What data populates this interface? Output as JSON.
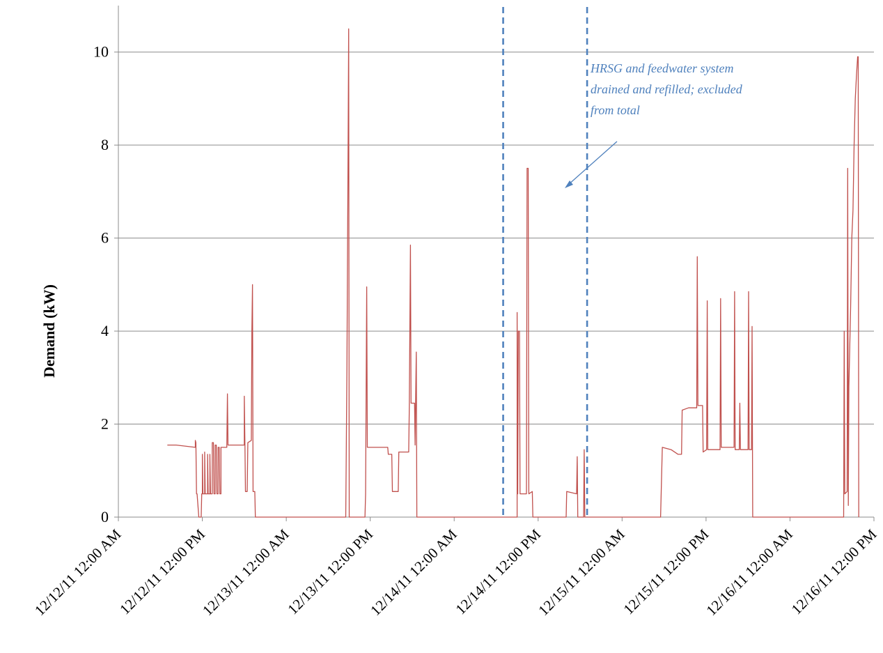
{
  "chart_data": {
    "type": "line",
    "title": "",
    "xlabel": "",
    "ylabel": "Demand (kW)",
    "ylim": [
      0,
      11
    ],
    "yticks": [
      "0",
      "2",
      "4",
      "6",
      "8",
      "10"
    ],
    "ytick_values": [
      0,
      2,
      4,
      6,
      8,
      10
    ],
    "xlim": [
      "12/12/11 12:00 AM",
      "12/16/11 12:00 PM"
    ],
    "xticks": [
      "12/12/11 12:00 AM",
      "12/12/11 12:00 PM",
      "12/13/11 12:00 AM",
      "12/13/11 12:00 PM",
      "12/14/11 12:00 AM",
      "12/14/11 12:00 PM",
      "12/15/11 12:00 AM",
      "12/15/11 12:00 PM",
      "12/16/11 12:00 AM",
      "12/16/11 12:00 PM"
    ],
    "grid": "horizontal",
    "series": [
      {
        "color": "#C0504D",
        "points": [
          [
            "12/12/11 7:00 AM",
            1.55
          ],
          [
            "12/12/11 8:15 AM",
            1.55
          ],
          [
            "12/12/11 11:00 AM",
            1.5
          ],
          [
            "12/12/11 11:00 AM",
            1.65
          ],
          [
            "12/12/11 11:05 AM",
            1.6
          ],
          [
            "12/12/11 11:10 AM",
            0.5
          ],
          [
            "12/12/11 11:15 AM",
            0.5
          ],
          [
            "12/12/11 11:30 AM",
            0.0
          ],
          [
            "12/12/11 11:50 AM",
            0.0
          ],
          [
            "12/12/11 11:55 AM",
            0.5
          ],
          [
            "12/12/11 12:00 PM",
            0.5
          ],
          [
            "12/12/11 12:00 PM",
            1.35
          ],
          [
            "12/12/11 12:05 PM",
            0.5
          ],
          [
            "12/12/11 12:20 PM",
            0.5
          ],
          [
            "12/12/11 12:20 PM",
            1.4
          ],
          [
            "12/12/11 12:25 PM",
            0.5
          ],
          [
            "12/12/11 12:45 PM",
            0.5
          ],
          [
            "12/12/11 12:45 PM",
            1.35
          ],
          [
            "12/12/11 12:50 PM",
            0.5
          ],
          [
            "12/12/11 1:05 PM",
            0.5
          ],
          [
            "12/12/11 1:05 PM",
            1.35
          ],
          [
            "12/12/11 1:10 PM",
            0.5
          ],
          [
            "12/12/11 1:25 PM",
            0.5
          ],
          [
            "12/12/11 1:25 PM",
            1.6
          ],
          [
            "12/12/11 1:35 PM",
            1.6
          ],
          [
            "12/12/11 1:40 PM",
            0.5
          ],
          [
            "12/12/11 1:50 PM",
            0.5
          ],
          [
            "12/12/11 1:50 PM",
            1.55
          ],
          [
            "12/12/11 2:00 PM",
            1.55
          ],
          [
            "12/12/11 2:05 PM",
            0.5
          ],
          [
            "12/12/11 2:15 PM",
            0.5
          ],
          [
            "12/12/11 2:15 PM",
            1.5
          ],
          [
            "12/12/11 2:25 PM",
            1.5
          ],
          [
            "12/12/11 2:30 PM",
            0.5
          ],
          [
            "12/12/11 2:40 PM",
            0.5
          ],
          [
            "12/12/11 2:40 PM",
            1.5
          ],
          [
            "12/12/11 3:30 PM",
            1.5
          ],
          [
            "12/12/11 3:35 PM",
            2.65
          ],
          [
            "12/12/11 3:40 PM",
            1.55
          ],
          [
            "12/12/11 6:00 PM",
            1.55
          ],
          [
            "12/12/11 6:00 PM",
            2.6
          ],
          [
            "12/12/11 6:05 PM",
            1.6
          ],
          [
            "12/12/11 6:10 PM",
            0.55
          ],
          [
            "12/12/11 6:25 PM",
            0.55
          ],
          [
            "12/12/11 6:30 PM",
            1.6
          ],
          [
            "12/12/11 7:00 PM",
            1.65
          ],
          [
            "12/12/11 7:05 PM",
            4.0
          ],
          [
            "12/12/11 7:10 PM",
            5.0
          ],
          [
            "12/12/11 7:15 PM",
            0.55
          ],
          [
            "12/12/11 7:30 PM",
            0.55
          ],
          [
            "12/12/11 7:35 PM",
            0.0
          ],
          [
            "12/13/11 8:30 AM",
            0.0
          ],
          [
            "12/13/11 8:30 AM",
            0.0
          ],
          [
            "12/13/11 8:40 AM",
            3.2
          ],
          [
            "12/13/11 8:50 AM",
            8.0
          ],
          [
            "12/13/11 8:55 AM",
            10.5
          ],
          [
            "12/13/11 9:00 AM",
            0.0
          ],
          [
            "12/13/11 11:15 AM",
            0.0
          ],
          [
            "12/13/11 11:20 AM",
            0.5
          ],
          [
            "12/13/11 11:30 AM",
            4.95
          ],
          [
            "12/13/11 11:35 AM",
            1.5
          ],
          [
            "12/13/11 2:30 PM",
            1.5
          ],
          [
            "12/13/11 2:35 PM",
            1.35
          ],
          [
            "12/13/11 3:05 PM",
            1.35
          ],
          [
            "12/13/11 3:10 PM",
            0.55
          ],
          [
            "12/13/11 4:00 PM",
            0.55
          ],
          [
            "12/13/11 4:05 PM",
            1.4
          ],
          [
            "12/13/11 5:30 PM",
            1.4
          ],
          [
            "12/13/11 5:35 PM",
            2.4
          ],
          [
            "12/13/11 5:45 PM",
            5.85
          ],
          [
            "12/13/11 5:50 PM",
            2.45
          ],
          [
            "12/13/11 6:20 PM",
            2.45
          ],
          [
            "12/13/11 6:25 PM",
            1.55
          ],
          [
            "12/13/11 6:30 PM",
            2.7
          ],
          [
            "12/13/11 6:35 PM",
            3.55
          ],
          [
            "12/13/11 6:40 PM",
            0.0
          ],
          [
            "12/14/11 9:00 AM",
            0.0
          ],
          [
            "12/14/11 9:00 AM",
            4.4
          ],
          [
            "12/14/11 9:05 AM",
            0.5
          ],
          [
            "12/14/11 9:10 AM",
            4.0
          ],
          [
            "12/14/11 9:20 AM",
            4.0
          ],
          [
            "12/14/11 9:25 AM",
            0.5
          ],
          [
            "12/14/11 10:20 AM",
            0.5
          ],
          [
            "12/14/11 10:25 AM",
            7.5
          ],
          [
            "12/14/11 10:35 AM",
            7.5
          ],
          [
            "12/14/11 10:40 AM",
            0.5
          ],
          [
            "12/14/11 11:10 AM",
            0.55
          ],
          [
            "12/14/11 11:15 AM",
            0.0
          ],
          [
            "12/14/11 4:00 PM",
            0.0
          ],
          [
            "12/14/11 4:05 PM",
            0.55
          ],
          [
            "12/14/11 5:30 PM",
            0.5
          ],
          [
            "12/14/11 5:35 PM",
            1.3
          ],
          [
            "12/14/11 5:40 PM",
            0.0
          ],
          [
            "12/14/11 6:30 PM",
            0.0
          ],
          [
            "12/14/11 6:35 PM",
            1.45
          ],
          [
            "12/14/11 6:40 PM",
            0.0
          ],
          [
            "12/15/11 5:30 AM",
            0.0
          ],
          [
            "12/15/11 5:45 AM",
            1.5
          ],
          [
            "12/15/11 7:00 AM",
            1.45
          ],
          [
            "12/15/11 8:00 AM",
            1.35
          ],
          [
            "12/15/11 8:30 AM",
            1.35
          ],
          [
            "12/15/11 8:35 AM",
            2.3
          ],
          [
            "12/15/11 9:30 AM",
            2.35
          ],
          [
            "12/15/11 10:40 AM",
            2.35
          ],
          [
            "12/15/11 10:45 AM",
            5.6
          ],
          [
            "12/15/11 10:50 AM",
            2.4
          ],
          [
            "12/15/11 11:30 AM",
            2.4
          ],
          [
            "12/15/11 11:35 AM",
            1.4
          ],
          [
            "12/15/11 12:05 PM",
            1.45
          ],
          [
            "12/15/11 12:10 PM",
            4.65
          ],
          [
            "12/15/11 12:15 PM",
            1.45
          ],
          [
            "12/15/11 2:00 PM",
            1.45
          ],
          [
            "12/15/11 2:05 PM",
            4.7
          ],
          [
            "12/15/11 2:10 PM",
            1.5
          ],
          [
            "12/15/11 4:00 PM",
            1.5
          ],
          [
            "12/15/11 4:05 PM",
            4.85
          ],
          [
            "12/15/11 4:10 PM",
            1.45
          ],
          [
            "12/15/11 4:45 PM",
            1.45
          ],
          [
            "12/15/11 4:50 PM",
            2.45
          ],
          [
            "12/15/11 4:55 PM",
            1.45
          ],
          [
            "12/15/11 6:00 PM",
            1.45
          ],
          [
            "12/15/11 6:05 PM",
            4.85
          ],
          [
            "12/15/11 6:10 PM",
            1.45
          ],
          [
            "12/15/11 6:30 PM",
            1.45
          ],
          [
            "12/15/11 6:35 PM",
            4.1
          ],
          [
            "12/15/11 6:40 PM",
            0.0
          ],
          [
            "12/16/11 7:40 AM",
            0.0
          ],
          [
            "12/16/11 7:45 AM",
            4.0
          ],
          [
            "12/16/11 7:50 AM",
            0.5
          ],
          [
            "12/16/11 8:10 AM",
            0.55
          ],
          [
            "12/16/11 8:15 AM",
            7.5
          ],
          [
            "12/16/11 8:20 AM",
            0.25
          ],
          [
            "12/16/11 8:25 AM",
            2.8
          ],
          [
            "12/16/11 8:40 AM",
            4.5
          ],
          [
            "12/16/11 8:50 AM",
            6.0
          ],
          [
            "12/16/11 9:00 AM",
            6.6
          ],
          [
            "12/16/11 9:10 AM",
            8.0
          ],
          [
            "12/16/11 9:20 AM",
            9.0
          ],
          [
            "12/16/11 9:30 AM",
            9.5
          ],
          [
            "12/16/11 9:40 AM",
            9.9
          ],
          [
            "12/16/11 9:45 AM",
            9.9
          ],
          [
            "12/16/11 9:50 AM",
            0.0
          ]
        ]
      }
    ],
    "vertical_markers": [
      {
        "x": "12/14/11 7:00 AM",
        "style": "dashed",
        "color": "#4F81BD"
      },
      {
        "x": "12/14/11 7:00 PM",
        "style": "dashed",
        "color": "#4F81BD"
      }
    ],
    "annotations": [
      {
        "text_lines": [
          "HRSG and feedwater  system",
          "drained and refilled;  excluded",
          "from total"
        ],
        "color": "#4F81BD"
      }
    ],
    "colors": {
      "series": "#C0504D",
      "markers": "#4F81BD",
      "annotation": "#4F81BD"
    }
  }
}
